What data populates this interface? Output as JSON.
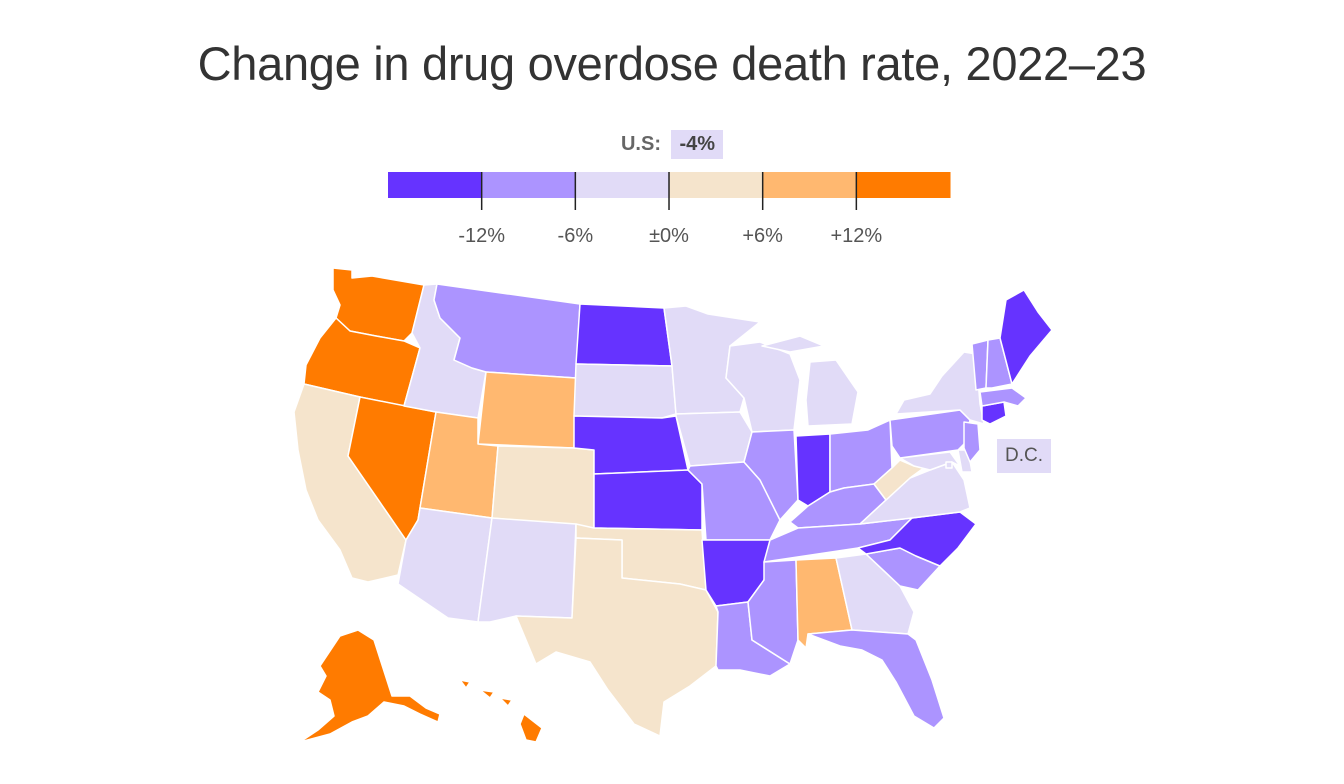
{
  "title": "Change in drug overdose death rate, 2022–23",
  "us": {
    "label": "U.S:",
    "value": "-4%",
    "color": "#e1dbf7"
  },
  "legend": {
    "bins": [
      {
        "color": "#6633ff"
      },
      {
        "color": "#ac94ff"
      },
      {
        "color": "#e1dbf7"
      },
      {
        "color": "#f5e4cc"
      },
      {
        "color": "#ffb870"
      },
      {
        "color": "#ff7b00"
      }
    ],
    "ticks": [
      "-12%",
      "-6%",
      "±0%",
      "+6%",
      "+12%"
    ]
  },
  "dc_label": "D.C.",
  "state_colors": {
    "WA": "#ff7b00",
    "OR": "#ff7b00",
    "CA": "#f5e4cc",
    "NV": "#ff7b00",
    "ID": "#e1dbf7",
    "MT": "#ac94ff",
    "WY": "#ffb870",
    "UT": "#ffb870",
    "AZ": "#e1dbf7",
    "CO": "#f5e4cc",
    "NM": "#e1dbf7",
    "ND": "#6633ff",
    "SD": "#e1dbf7",
    "NE": "#6633ff",
    "KS": "#6633ff",
    "OK": "#f5e4cc",
    "TX": "#f5e4cc",
    "MN": "#e1dbf7",
    "IA": "#e1dbf7",
    "MO": "#ac94ff",
    "AR": "#6633ff",
    "LA": "#ac94ff",
    "WI": "#e1dbf7",
    "IL": "#ac94ff",
    "MI": "#e1dbf7",
    "IN": "#6633ff",
    "OH": "#ac94ff",
    "KY": "#ac94ff",
    "TN": "#ac94ff",
    "MS": "#ac94ff",
    "AL": "#ffb870",
    "GA": "#e1dbf7",
    "FL": "#ac94ff",
    "SC": "#ac94ff",
    "NC": "#6633ff",
    "VA": "#e1dbf7",
    "WV": "#f5e4cc",
    "PA": "#ac94ff",
    "NY": "#e1dbf7",
    "ME": "#6633ff",
    "VT": "#ac94ff",
    "NH": "#ac94ff",
    "MA": "#ac94ff",
    "CT": "#6633ff",
    "NJ": "#ac94ff",
    "MD": "#e1dbf7",
    "DE": "#e1dbf7",
    "AK": "#ff7b00",
    "HI": "#ff7b00",
    "DC": "#e1dbf7"
  }
}
